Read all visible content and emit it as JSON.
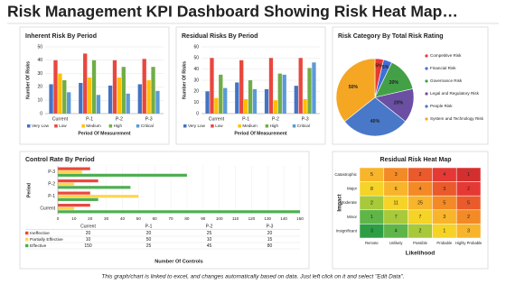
{
  "title": "Risk Management KPI Dashboard Showing Risk Heat Map…",
  "footer": "This graph/chart is linked to excel, and changes automatically based on data. Just left click on it and select \"Edit Data\".",
  "chart_data": [
    {
      "type": "bar",
      "title": "Inherent Risk By Period",
      "x_label": "Period Of Measurement",
      "y_label": "Number Of Risks",
      "categories": [
        "Current",
        "P-1",
        "P-2",
        "P-3"
      ],
      "series": [
        {
          "name": "Very Low",
          "color": "#4472c4",
          "values": [
            22,
            23,
            21,
            22
          ]
        },
        {
          "name": "Low",
          "color": "#e8473e",
          "values": [
            40,
            45,
            40,
            41
          ]
        },
        {
          "name": "Medium",
          "color": "#ffc000",
          "values": [
            30,
            27,
            27,
            25
          ]
        },
        {
          "name": "High",
          "color": "#70ad47",
          "values": [
            25,
            40,
            35,
            35
          ]
        },
        {
          "name": "Critical",
          "color": "#5b9bd5",
          "values": [
            16,
            14,
            15,
            17
          ]
        }
      ],
      "ylim": [
        0,
        50
      ],
      "yticks": [
        0,
        10,
        20,
        30,
        40,
        50
      ],
      "grid": true
    },
    {
      "type": "bar",
      "title": "Residual Risks By Period",
      "x_label": "Period Of Measurement",
      "y_label": "Number Of Risks",
      "categories": [
        "Current",
        "P-1",
        "P-2",
        "P-3"
      ],
      "series": [
        {
          "name": "Very Low",
          "color": "#4472c4",
          "values": [
            20,
            28,
            22,
            25
          ]
        },
        {
          "name": "Low",
          "color": "#e8473e",
          "values": [
            50,
            48,
            50,
            50
          ]
        },
        {
          "name": "Medium",
          "color": "#ffc000",
          "values": [
            14,
            13,
            12,
            13
          ]
        },
        {
          "name": "High",
          "color": "#70ad47",
          "values": [
            35,
            30,
            36,
            41
          ]
        },
        {
          "name": "Critical",
          "color": "#5b9bd5",
          "values": [
            23,
            22,
            35,
            46
          ]
        }
      ],
      "ylim": [
        0,
        60
      ],
      "yticks": [
        0,
        10,
        20,
        30,
        40,
        50,
        60
      ],
      "grid": true
    },
    {
      "type": "pie",
      "title": "Risk Category By Total Risk Rating",
      "categories": [
        "Competitive Risk",
        "Financial Risk",
        "Governance Risk",
        "Legal and Regulatory Risk",
        "People Risk",
        "System and Technology Risk"
      ],
      "values": [
        5,
        5,
        20,
        20,
        40,
        50
      ],
      "value_labels": [
        "5%",
        "5%",
        "20%",
        "20%",
        "40%",
        "50%"
      ],
      "colors": [
        "#e53935",
        "#3f6fd8",
        "#43a047",
        "#6a4fa3",
        "#4a78c8",
        "#f5a623"
      ]
    },
    {
      "type": "hbar",
      "title": "Control Rate By Period",
      "x_label": "Number Of Controls",
      "y_label": "Period",
      "categories": [
        "Current",
        "P-1",
        "P-2",
        "P-3"
      ],
      "series": [
        {
          "name": "Ineffective",
          "color": "#e8473e",
          "values": [
            20,
            20,
            25,
            20
          ]
        },
        {
          "name": "Partially Effective",
          "color": "#ffd54f",
          "values": [
            10,
            50,
            10,
            15
          ]
        },
        {
          "name": "Effective",
          "color": "#4caf50",
          "values": [
            150,
            25,
            45,
            80
          ]
        }
      ],
      "xlim": [
        0,
        150
      ],
      "xticks": [
        0,
        10,
        20,
        30,
        40,
        50,
        60,
        70,
        80,
        90,
        100,
        110,
        120,
        130,
        140,
        150
      ],
      "grid": true,
      "data_table": true
    },
    {
      "type": "heatmap",
      "title": "Residual Risk Heat Map",
      "x_label": "Likelihood",
      "y_label": "Impact",
      "x": [
        "Remote",
        "Unlikely",
        "Possible",
        "Probable",
        "Highly Probable"
      ],
      "y": [
        "Catastrophic",
        "Major",
        "Moderate",
        "Minor",
        "Insignificant"
      ],
      "values": [
        [
          5,
          3,
          2,
          4,
          1
        ],
        [
          8,
          6,
          4,
          3,
          2
        ],
        [
          2,
          11,
          25,
          5,
          5
        ],
        [
          1,
          7,
          7,
          3,
          2
        ],
        [
          3,
          4,
          2,
          1,
          3
        ]
      ]
    }
  ]
}
